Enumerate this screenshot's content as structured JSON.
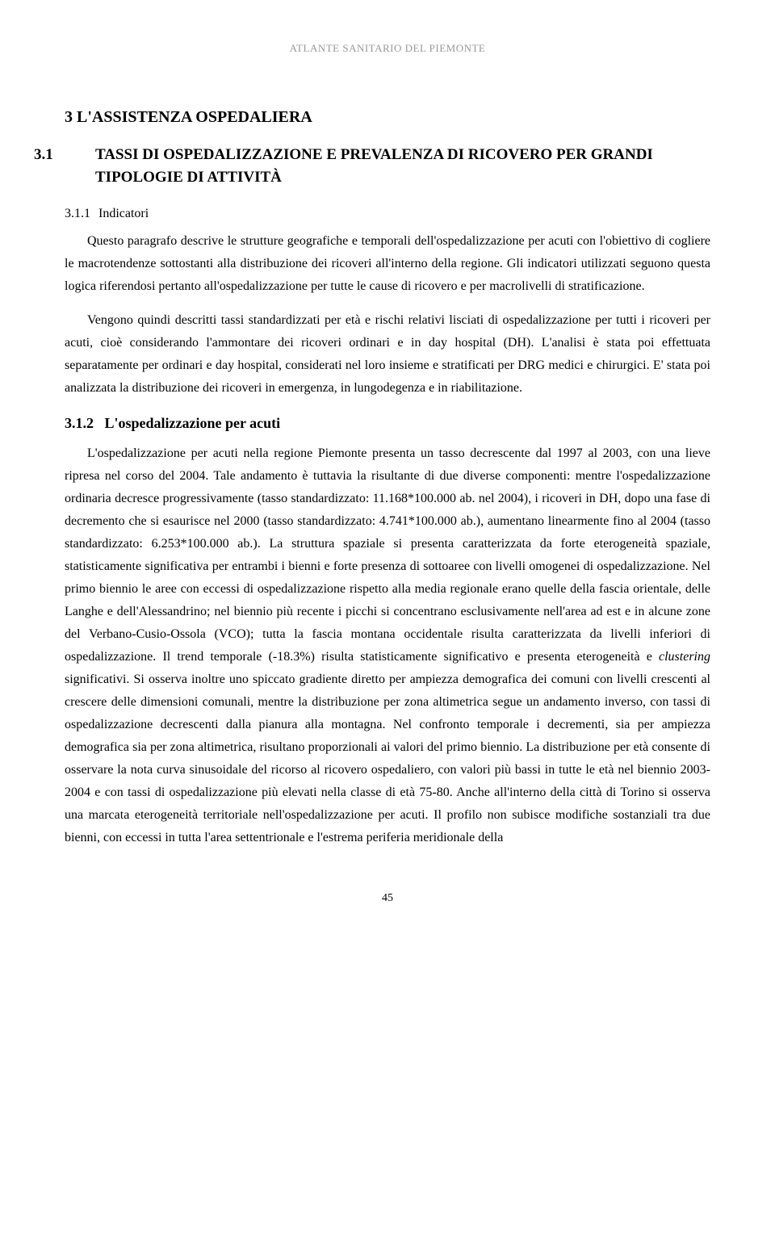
{
  "header": "ATLANTE SANITARIO DEL PIEMONTE",
  "section_title": "3   L'ASSISTENZA OSPEDALIERA",
  "subsection_num": "3.1",
  "subsection_title": "TASSI DI OSPEDALIZZAZIONE E PREVALENZA DI RICOVERO PER GRANDI TIPOLOGIE DI ATTIVITÀ",
  "sub311_num": "3.1.1",
  "sub311_title": "Indicatori",
  "para1": "Questo paragrafo descrive le strutture geografiche e temporali dell'ospedalizzazione per acuti con l'obiettivo di cogliere le macrotendenze sottostanti alla distribuzione dei ricoveri all'interno della regione. Gli indicatori utilizzati seguono questa logica riferendosi pertanto all'ospedalizzazione per tutte le cause di ricovero e per macrolivelli di stratificazione.",
  "para2": "Vengono quindi descritti tassi standardizzati per età e rischi relativi lisciati di ospedalizzazione per tutti i ricoveri per acuti, cioè considerando l'ammontare dei ricoveri ordinari e in day hospital (DH). L'analisi è stata poi effettuata separatamente per ordinari e day hospital, considerati nel loro insieme e stratificati per DRG medici e chirurgici. E' stata poi analizzata la distribuzione dei ricoveri in emergenza, in lungodegenza e in riabilitazione.",
  "sub312_num": "3.1.2",
  "sub312_title": "L'ospedalizzazione per acuti",
  "para3_part1": "L'ospedalizzazione per acuti nella regione Piemonte presenta un tasso decrescente dal 1997 al 2003, con una lieve ripresa nel corso del 2004. Tale andamento è tuttavia la risultante di due diverse componenti: mentre l'ospedalizzazione ordinaria decresce progressivamente (tasso standardizzato: 11.168*100.000 ab. nel 2004), i ricoveri in DH, dopo una fase di decremento che si esaurisce nel 2000 (tasso standardizzato: 4.741*100.000 ab.), aumentano linearmente fino al 2004 (tasso standardizzato: 6.253*100.000 ab.). La struttura spaziale si presenta caratterizzata da forte eterogeneità spaziale, statisticamente significativa per entrambi i bienni e forte presenza di sottoaree con livelli omogenei di ospedalizzazione. Nel primo biennio le aree con eccessi di ospedalizzazione rispetto alla media regionale erano quelle della fascia orientale, delle Langhe e dell'Alessandrino; nel biennio più recente i picchi si concentrano esclusivamente nell'area ad est e in alcune zone del Verbano-Cusio-Ossola (VCO); tutta la fascia montana occidentale risulta caratterizzata da livelli inferiori di ospedalizzazione. Il trend temporale (-18.3%) risulta statisticamente significativo e presenta eterogeneità e ",
  "para3_italic": "clustering",
  "para3_part2": " significativi. Si osserva inoltre uno spiccato gradiente diretto per ampiezza demografica dei comuni con livelli crescenti al crescere delle dimensioni comunali, mentre la distribuzione per zona altimetrica segue un andamento inverso, con tassi di ospedalizzazione decrescenti dalla pianura alla montagna. Nel confronto temporale i decrementi, sia per ampiezza demografica sia per zona altimetrica, risultano proporzionali ai valori del primo biennio. La distribuzione per età consente di osservare la nota curva sinusoidale del ricorso al ricovero ospedaliero, con valori più bassi in tutte le età nel biennio 2003-2004 e con tassi di ospedalizzazione più elevati nella classe di età 75-80. Anche all'interno della città di Torino si osserva una marcata eterogeneità territoriale nell'ospedalizzazione per acuti. Il profilo non subisce modifiche sostanziali tra due bienni, con eccessi in tutta l'area settentrionale e l'estrema periferia meridionale della",
  "page_number": "45",
  "colors": {
    "header_text": "#999999",
    "body_text": "#000000",
    "background": "#ffffff"
  },
  "typography": {
    "body_fontsize": 16,
    "section_title_fontsize": 20,
    "subsection_title_fontsize": 19,
    "header_fontsize": 13,
    "font_family": "Georgia, Times New Roman, serif",
    "line_height": 1.75
  }
}
